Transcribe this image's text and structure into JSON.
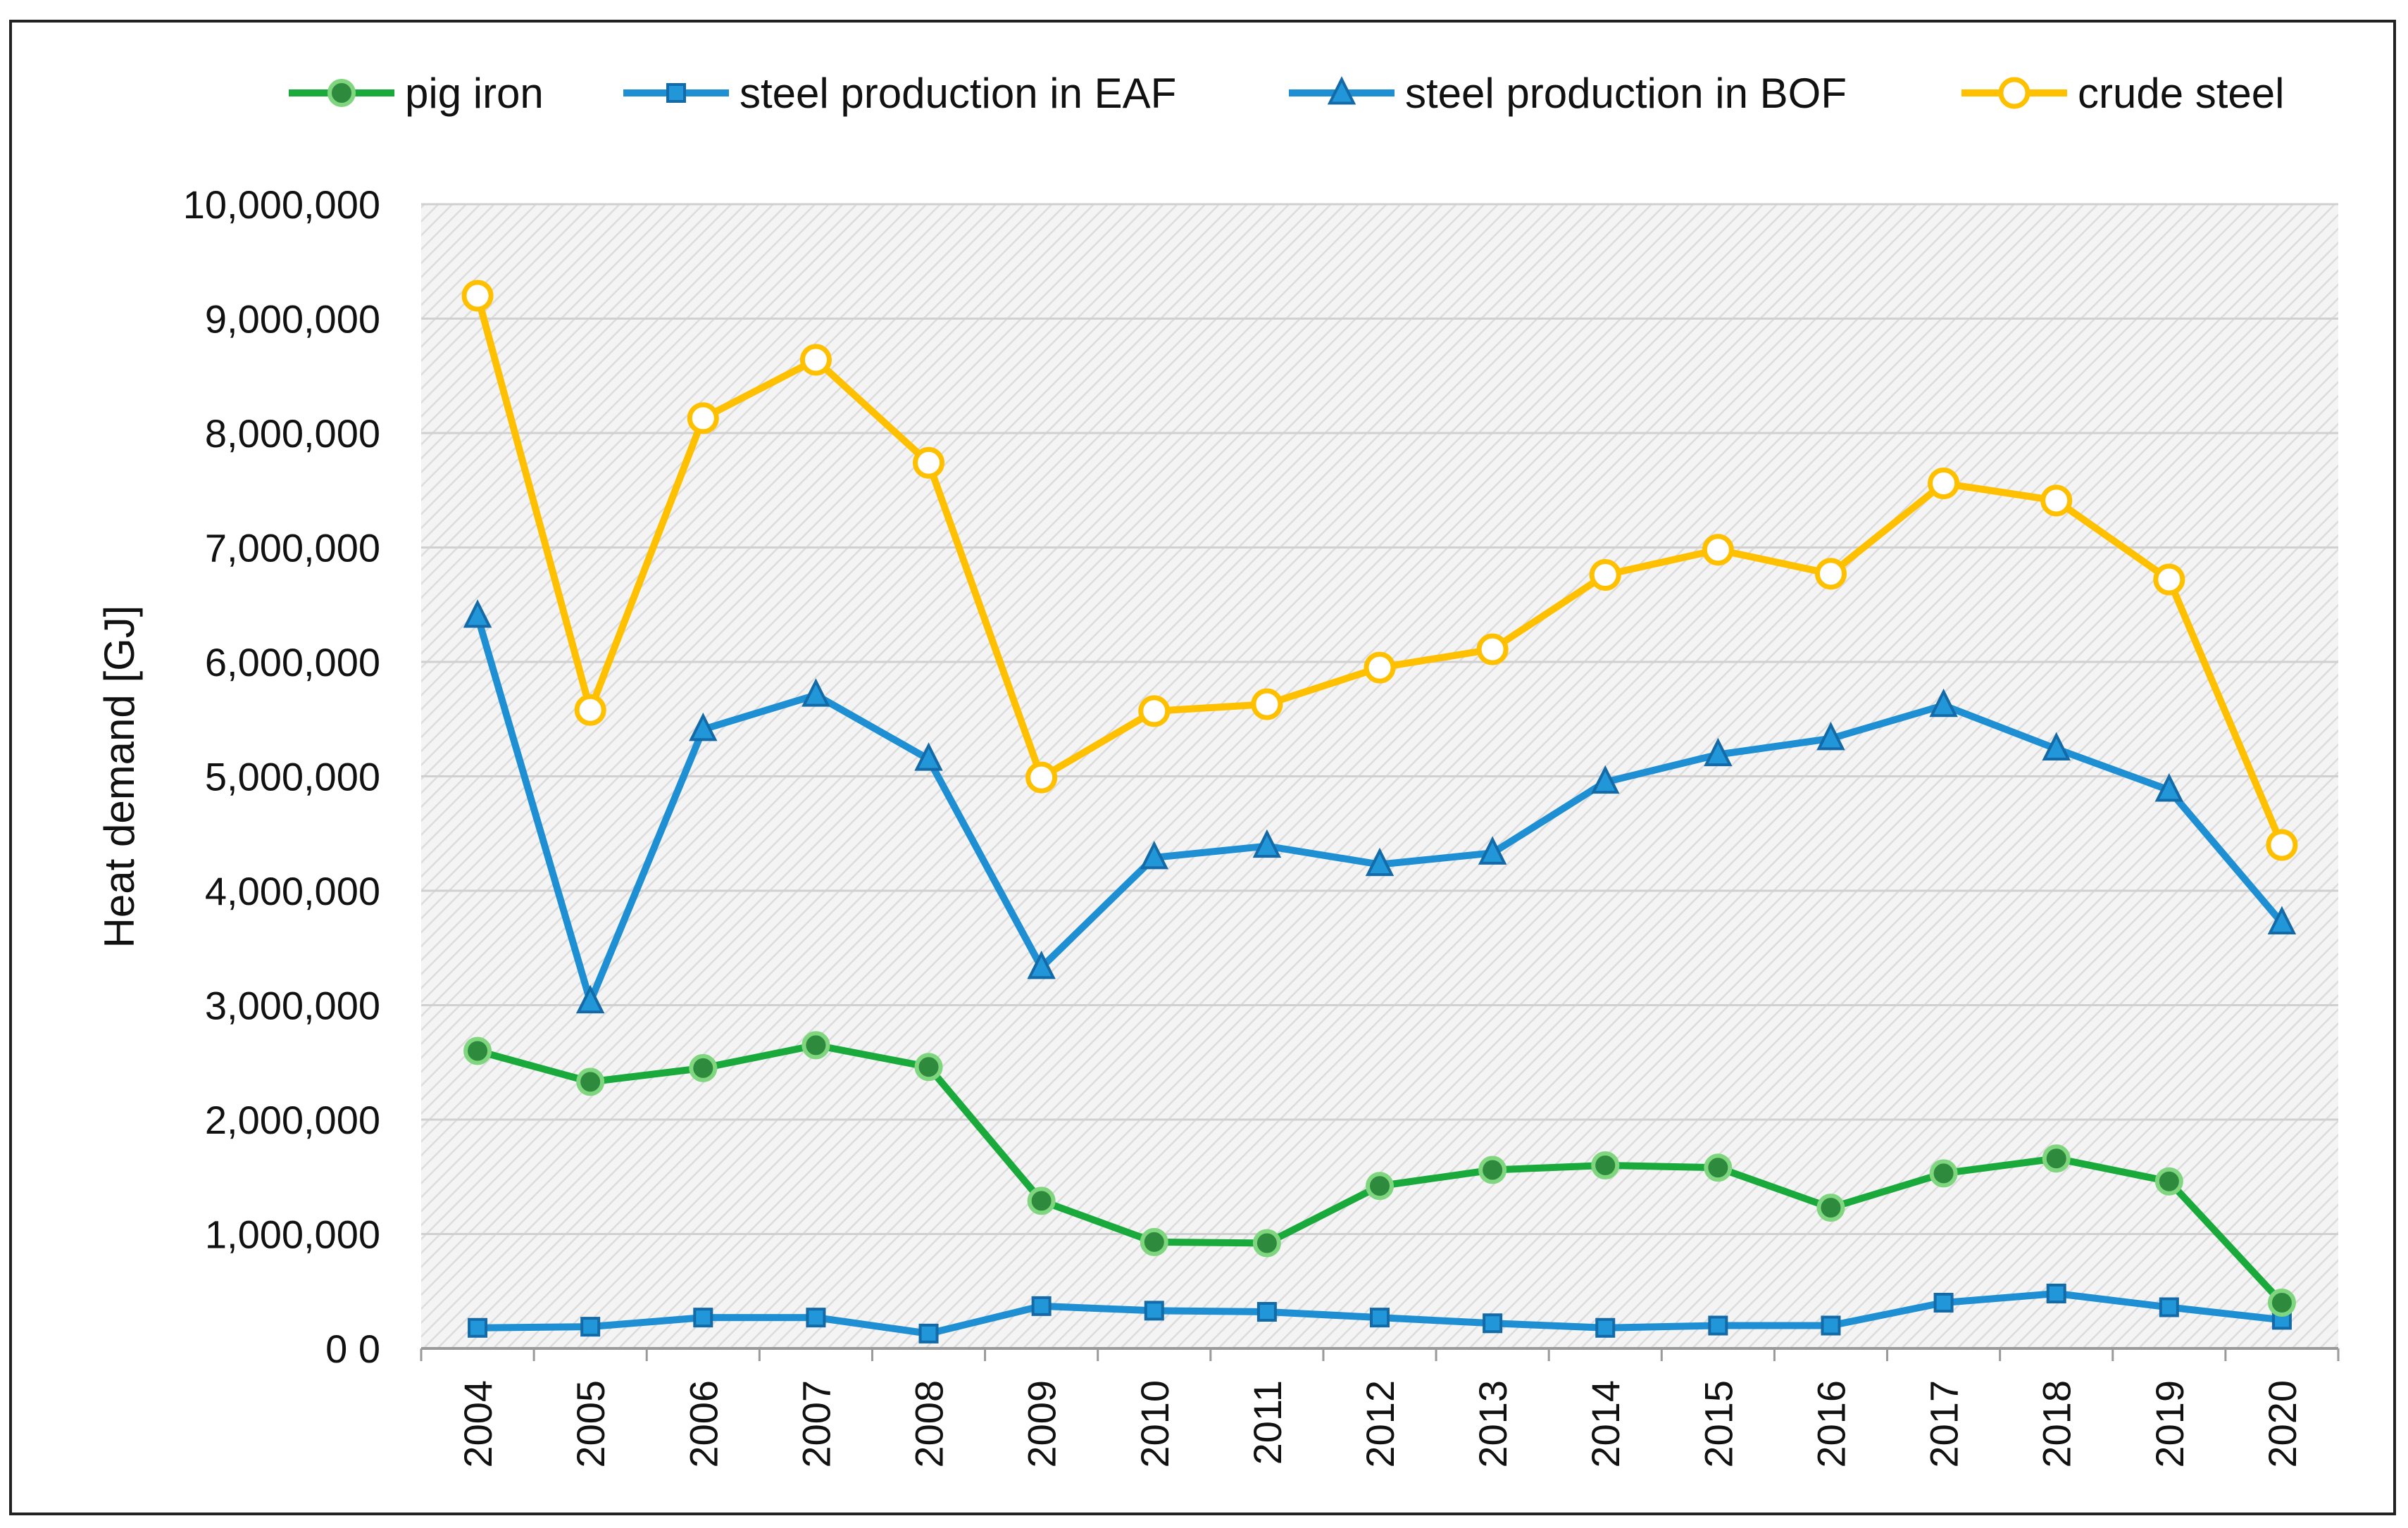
{
  "chart_data": {
    "type": "line",
    "title": "",
    "xlabel": "",
    "ylabel": "Heat demand [GJ]",
    "ylim": [
      0,
      10000000
    ],
    "y_ticks": [
      0,
      1000000,
      2000000,
      3000000,
      4000000,
      5000000,
      6000000,
      7000000,
      8000000,
      9000000,
      10000000
    ],
    "y_tick_labels": [
      "0 0",
      "1,000,000",
      "2,000,000",
      "3,000,000",
      "4,000,000",
      "5,000,000",
      "6,000,000",
      "7,000,000",
      "8,000,000",
      "9,000,000",
      "10,000,000"
    ],
    "grid": true,
    "legend_position": "top",
    "categories": [
      "2004",
      "2005",
      "2006",
      "2007",
      "2008",
      "2009",
      "2010",
      "2011",
      "2012",
      "2013",
      "2014",
      "2015",
      "2016",
      "2017",
      "2018",
      "2019",
      "2020"
    ],
    "series": [
      {
        "name": "pig iron",
        "color": "#1aaa3c",
        "marker": "circle-filled",
        "values": [
          2600000,
          2330000,
          2450000,
          2650000,
          2460000,
          1290000,
          930000,
          920000,
          1420000,
          1560000,
          1600000,
          1580000,
          1230000,
          1530000,
          1660000,
          1460000,
          400000
        ]
      },
      {
        "name": "steel production in EAF",
        "color": "#1f8fd3",
        "marker": "square",
        "values": [
          180000,
          190000,
          270000,
          270000,
          130000,
          370000,
          330000,
          320000,
          270000,
          220000,
          180000,
          200000,
          200000,
          400000,
          480000,
          360000,
          250000
        ]
      },
      {
        "name": "steel production in BOF",
        "color": "#1f8fd3",
        "marker": "triangle",
        "values": [
          6400000,
          3030000,
          5410000,
          5710000,
          5150000,
          3330000,
          4290000,
          4390000,
          4230000,
          4330000,
          4950000,
          5190000,
          5330000,
          5620000,
          5240000,
          4880000,
          3720000
        ]
      },
      {
        "name": "crude steel",
        "color": "#ffc000",
        "marker": "circle-open",
        "values": [
          9200000,
          5580000,
          8130000,
          8640000,
          7740000,
          4990000,
          5570000,
          5630000,
          5950000,
          6110000,
          6760000,
          6980000,
          6770000,
          7560000,
          7410000,
          6720000,
          4400000
        ]
      }
    ]
  }
}
